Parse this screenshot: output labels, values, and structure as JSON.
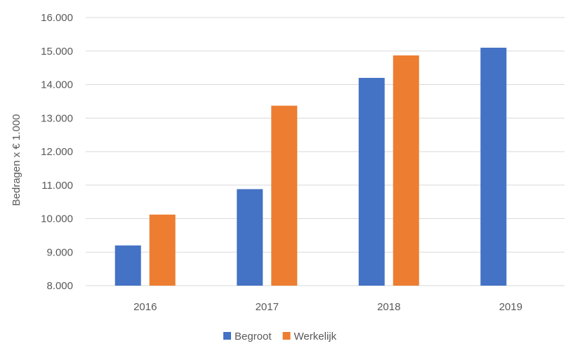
{
  "chart_data": {
    "type": "bar",
    "title": "",
    "xlabel": "",
    "ylabel": "Bedragen x € 1.000",
    "categories": [
      "2016",
      "2017",
      "2018",
      "2019"
    ],
    "series": [
      {
        "name": "Begroot",
        "color": "#4472C4",
        "values": [
          9200,
          10880,
          14200,
          15100
        ]
      },
      {
        "name": "Werkelijk",
        "color": "#ED7D31",
        "values": [
          10120,
          13370,
          14870,
          null
        ]
      }
    ],
    "ylim": [
      8000,
      16000
    ],
    "yticks": [
      8000,
      9000,
      10000,
      11000,
      12000,
      13000,
      14000,
      15000,
      16000
    ],
    "ytick_labels": [
      "8.000",
      "9.000",
      "10.000",
      "11.000",
      "12.000",
      "13.000",
      "14.000",
      "15.000",
      "16.000"
    ],
    "grid": true,
    "legend_position": "bottom",
    "gridline_color": "#D9D9D9"
  }
}
